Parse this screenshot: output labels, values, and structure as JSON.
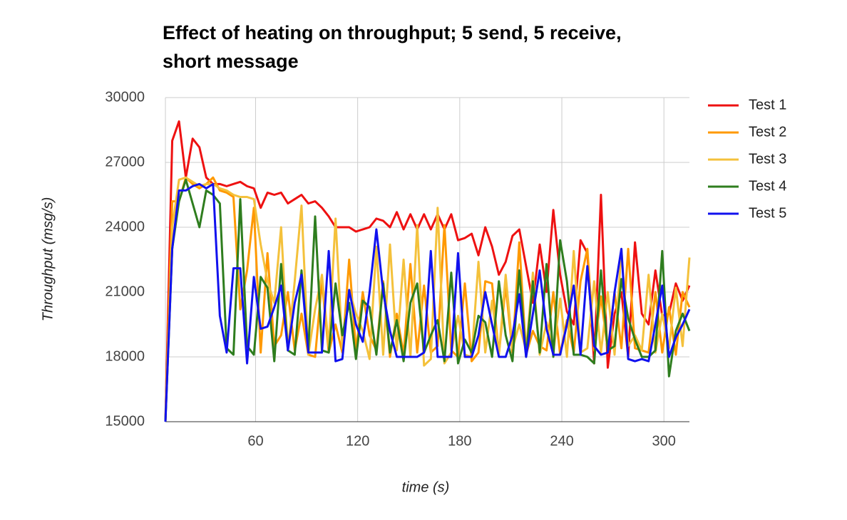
{
  "chart_data": {
    "type": "line",
    "title": "Effect of heating on throughput; 5 send, 5 receive, short message",
    "x_label": "time (s)",
    "y_label": "Throughput (msg/s)",
    "x": [
      7,
      11,
      15,
      19,
      23,
      27,
      31,
      35,
      39,
      43,
      47,
      51,
      55,
      59,
      63,
      67,
      71,
      75,
      79,
      83,
      87,
      91,
      95,
      99,
      103,
      107,
      111,
      115,
      119,
      123,
      127,
      131,
      135,
      139,
      143,
      147,
      151,
      155,
      159,
      163,
      167,
      171,
      175,
      179,
      183,
      187,
      191,
      195,
      199,
      203,
      207,
      211,
      215,
      219,
      223,
      227,
      231,
      235,
      239,
      243,
      247,
      251,
      255,
      259,
      263,
      267,
      271,
      275,
      279,
      283,
      287,
      291,
      295,
      299,
      303,
      307,
      311,
      315
    ],
    "series": [
      {
        "name": "Test 1",
        "color": "#ee1111",
        "values": [
          15000,
          28000,
          28900,
          26300,
          28100,
          27700,
          26300,
          26000,
          26000,
          25900,
          26000,
          26100,
          25900,
          25800,
          24900,
          25600,
          25500,
          25600,
          25100,
          25300,
          25500,
          25100,
          25200,
          24900,
          24500,
          24000,
          24000,
          24000,
          23800,
          23900,
          24000,
          24400,
          24300,
          24000,
          24700,
          23900,
          24600,
          23900,
          24600,
          23900,
          24600,
          23900,
          24600,
          23400,
          23500,
          23700,
          22700,
          24000,
          23100,
          21800,
          22400,
          23600,
          23900,
          22200,
          20500,
          23200,
          21000,
          24800,
          21800,
          20100,
          19500,
          23400,
          22800,
          17700,
          25500,
          17500,
          20000,
          21000,
          18000,
          23300,
          20000,
          19500,
          22000,
          19900,
          20000,
          21400,
          20600,
          21300
        ]
      },
      {
        "name": "Test 2",
        "color": "#ff9900",
        "values": [
          15000,
          25200,
          25200,
          26300,
          26000,
          25800,
          26000,
          26300,
          25700,
          25600,
          25400,
          20200,
          22000,
          24900,
          18200,
          22800,
          18500,
          19000,
          21000,
          18300,
          20000,
          18100,
          18000,
          21500,
          18200,
          19500,
          18200,
          22500,
          18300,
          21000,
          19000,
          18300,
          21500,
          18000,
          20000,
          18100,
          22300,
          18200,
          21300,
          18200,
          18500,
          24100,
          18300,
          18000,
          21400,
          17800,
          18200,
          21500,
          21400,
          18100,
          21300,
          18200,
          23300,
          18100,
          19200,
          18500,
          18300,
          21000,
          18100,
          19700,
          18200,
          21500,
          23000,
          18300,
          20800,
          18300,
          21000,
          18400,
          23000,
          18400,
          18300,
          18200,
          21000,
          18200,
          20300,
          18100,
          21000,
          20300
        ]
      },
      {
        "name": "Test 3",
        "color": "#f4c13b",
        "values": [
          15000,
          24000,
          26200,
          26300,
          26100,
          25900,
          26000,
          26000,
          25800,
          25700,
          25500,
          25400,
          25400,
          25300,
          23200,
          21500,
          20500,
          24000,
          18300,
          21500,
          25000,
          18100,
          20200,
          21800,
          18500,
          24400,
          18400,
          21100,
          20000,
          19200,
          17900,
          23100,
          18100,
          23200,
          18300,
          22500,
          18000,
          24100,
          17600,
          17900,
          24900,
          17700,
          18200,
          19900,
          18100,
          18000,
          22400,
          18200,
          20600,
          18100,
          21800,
          18400,
          19500,
          18300,
          21900,
          18100,
          19600,
          18200,
          20700,
          18000,
          22900,
          18200,
          18400,
          21500,
          18200,
          21000,
          18100,
          23000,
          18500,
          19000,
          18300,
          21800,
          18200,
          20000,
          18400,
          21200,
          18500,
          22600
        ]
      },
      {
        "name": "Test 4",
        "color": "#2e7d1e",
        "values": [
          15000,
          23000,
          25200,
          26200,
          25100,
          24000,
          25700,
          25500,
          25100,
          18400,
          18100,
          25300,
          18500,
          18100,
          21700,
          21200,
          17800,
          22300,
          18300,
          18100,
          22000,
          18300,
          24500,
          18300,
          18200,
          21400,
          19000,
          20500,
          17900,
          20600,
          20300,
          18100,
          21400,
          18200,
          19700,
          17800,
          20500,
          21400,
          18200,
          19000,
          19700,
          17800,
          21900,
          17700,
          18800,
          18200,
          19900,
          19600,
          18000,
          21500,
          19000,
          17800,
          22000,
          18000,
          21500,
          18200,
          22300,
          18000,
          23400,
          21500,
          18100,
          18100,
          18000,
          17700,
          22000,
          18300,
          18500,
          21600,
          19800,
          18800,
          18000,
          18000,
          18300,
          22900,
          17100,
          19200,
          20000,
          19200
        ]
      },
      {
        "name": "Test 5",
        "color": "#1111ee",
        "values": [
          15000,
          23000,
          25700,
          25700,
          25900,
          26000,
          25800,
          26000,
          19900,
          18200,
          22100,
          22100,
          17700,
          21700,
          19300,
          19400,
          20300,
          21300,
          18300,
          20500,
          21800,
          18200,
          18200,
          18200,
          22900,
          17800,
          17900,
          21100,
          19500,
          18700,
          21000,
          23900,
          21000,
          19200,
          18000,
          18000,
          18000,
          18000,
          18200,
          22900,
          18000,
          18000,
          18000,
          22800,
          18000,
          18000,
          19000,
          21000,
          19500,
          18000,
          18000,
          19000,
          20900,
          18000,
          20000,
          22000,
          19300,
          18100,
          18100,
          19500,
          21300,
          18100,
          22200,
          18500,
          18100,
          18200,
          21000,
          23000,
          17900,
          17800,
          17900,
          17800,
          19500,
          21300,
          18000,
          18900,
          19500,
          20200
        ]
      }
    ],
    "xlim": [
      7,
      315
    ],
    "xticks": [
      60,
      120,
      180,
      240,
      300
    ],
    "ylim": [
      15000,
      30000
    ],
    "yticks": [
      15000,
      18000,
      21000,
      24000,
      27000,
      30000
    ],
    "grid": true,
    "legend": "right"
  }
}
